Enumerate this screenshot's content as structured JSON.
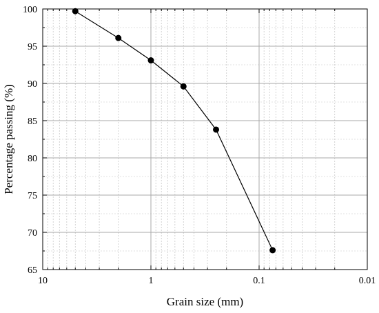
{
  "chart_data": {
    "type": "line",
    "x_scale": "log",
    "x_reversed": true,
    "xlabel": "Grain size (mm)",
    "ylabel": "Percentage passing (%)",
    "xlim": [
      10,
      0.01
    ],
    "ylim": [
      65,
      100
    ],
    "x_ticks": [
      10,
      1,
      0.1,
      0.01
    ],
    "x_tick_labels": [
      "10",
      "1",
      "0.1",
      "0.01"
    ],
    "y_ticks": [
      65,
      70,
      75,
      80,
      85,
      90,
      95,
      100
    ],
    "y_tick_labels": [
      "65",
      "70",
      "75",
      "80",
      "85",
      "90",
      "95",
      "100"
    ],
    "grid": true,
    "line_color": "#000000",
    "marker": "filled-circle",
    "series": [
      {
        "x": [
          5,
          2,
          1,
          0.5,
          0.25,
          0.075
        ],
        "y": [
          99.7,
          96.1,
          93.1,
          89.6,
          83.8,
          67.6
        ]
      }
    ]
  }
}
